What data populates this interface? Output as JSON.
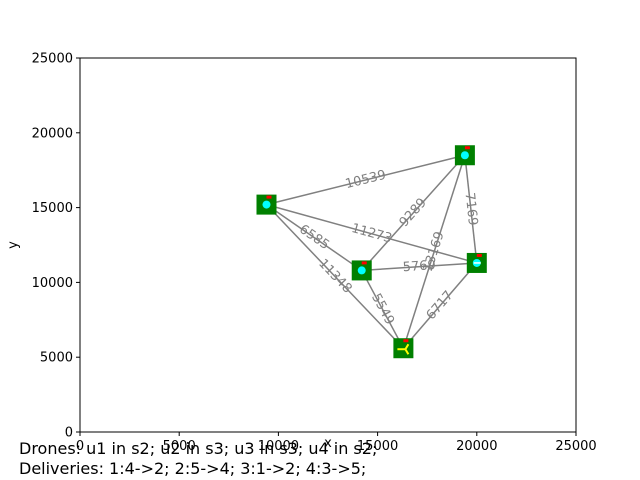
{
  "chart_data": {
    "type": "scatter",
    "title": "",
    "xlabel": "x",
    "ylabel": "y",
    "xlim": [
      0,
      25000
    ],
    "ylim": [
      0,
      25000
    ],
    "xticks": [
      0,
      5000,
      10000,
      15000,
      20000,
      25000
    ],
    "yticks": [
      0,
      5000,
      10000,
      15000,
      20000,
      25000
    ],
    "xtick_labels": [
      "0",
      "5000",
      "10000",
      "15000",
      "20000",
      "25000"
    ],
    "ytick_labels": [
      "0",
      "5000",
      "10000",
      "15000",
      "20000",
      "25000"
    ],
    "grid": false,
    "nodes": [
      {
        "x": 9400,
        "y": 15200
      },
      {
        "x": 19400,
        "y": 18500
      },
      {
        "x": 14200,
        "y": 10800
      },
      {
        "x": 20000,
        "y": 11300
      },
      {
        "x": 16300,
        "y": 5600
      }
    ],
    "edges": [
      {
        "from": 0,
        "to": 1,
        "label": "10539"
      },
      {
        "from": 0,
        "to": 2,
        "label": "6585"
      },
      {
        "from": 0,
        "to": 3,
        "label": "11273"
      },
      {
        "from": 0,
        "to": 4,
        "label": "11348"
      },
      {
        "from": 1,
        "to": 2,
        "label": "9289"
      },
      {
        "from": 1,
        "to": 3,
        "label": "7169"
      },
      {
        "from": 1,
        "to": 4,
        "label": "13169"
      },
      {
        "from": 2,
        "to": 3,
        "label": "5769"
      },
      {
        "from": 2,
        "to": 4,
        "label": "5549"
      },
      {
        "from": 3,
        "to": 4,
        "label": "6717"
      }
    ],
    "colors": {
      "node_fill": "#008000",
      "edge": "#808080",
      "drone": "#00ffff",
      "marker_red": "#ff0000",
      "marker_yellow": "#ffff00"
    }
  },
  "status": {
    "drones": "Drones: u1 in s2; u2 in s3; u3 in s3; u4 in s2;",
    "deliveries": "Deliveries: 1:4->2; 2:5->4; 3:1->2; 4:3->5;"
  }
}
